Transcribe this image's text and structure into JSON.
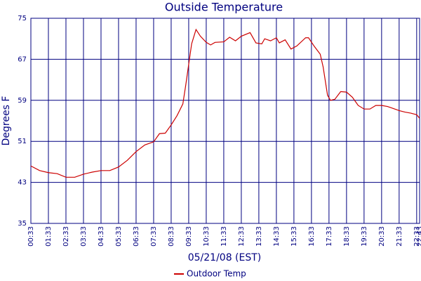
{
  "chart_data": {
    "type": "line",
    "title": "Outside Temperature",
    "y_label": "Degrees F",
    "x_label": "05/21/08 (EST)",
    "xlim": [
      33,
      1363
    ],
    "xticks": [
      {
        "value": 33,
        "label": "00:33"
      },
      {
        "value": 93,
        "label": "01:33"
      },
      {
        "value": 153,
        "label": "02:33"
      },
      {
        "value": 213,
        "label": "03:33"
      },
      {
        "value": 273,
        "label": "04:33"
      },
      {
        "value": 333,
        "label": "05:33"
      },
      {
        "value": 393,
        "label": "06:33"
      },
      {
        "value": 453,
        "label": "07:33"
      },
      {
        "value": 513,
        "label": "08:33"
      },
      {
        "value": 573,
        "label": "09:33"
      },
      {
        "value": 633,
        "label": "10:33"
      },
      {
        "value": 693,
        "label": "11:33"
      },
      {
        "value": 753,
        "label": "12:33"
      },
      {
        "value": 813,
        "label": "13:33"
      },
      {
        "value": 873,
        "label": "14:33"
      },
      {
        "value": 933,
        "label": "15:33"
      },
      {
        "value": 993,
        "label": "16:33"
      },
      {
        "value": 1053,
        "label": "17:33"
      },
      {
        "value": 1113,
        "label": "18:33"
      },
      {
        "value": 1173,
        "label": "19:33"
      },
      {
        "value": 1233,
        "label": "20:33"
      },
      {
        "value": 1293,
        "label": "21:33"
      },
      {
        "value": 1353,
        "label": "22:33"
      },
      {
        "value": 1363,
        "label": "22:43"
      }
    ],
    "ylim": [
      35,
      75
    ],
    "yticks": [
      35,
      43,
      51,
      59,
      67,
      75
    ],
    "grid": true,
    "legend": "bottom",
    "x": [
      33,
      63,
      93,
      123,
      153,
      183,
      213,
      243,
      273,
      303,
      333,
      363,
      393,
      423,
      453,
      473,
      493,
      513,
      533,
      553,
      563,
      573,
      583,
      598,
      613,
      633,
      648,
      663,
      693,
      713,
      733,
      753,
      783,
      803,
      823,
      833,
      853,
      873,
      883,
      903,
      923,
      943,
      973,
      983,
      1003,
      1023,
      1033,
      1048,
      1058,
      1073,
      1093,
      1113,
      1133,
      1153,
      1173,
      1193,
      1213,
      1233,
      1253,
      1273,
      1293,
      1313,
      1333,
      1353,
      1363
    ],
    "series": [
      {
        "name": "Outdoor Temp",
        "color": "#cc0000",
        "values": [
          46.2,
          45.3,
          44.9,
          44.7,
          44.0,
          44.0,
          44.6,
          45.0,
          45.3,
          45.3,
          46.0,
          47.3,
          49.0,
          50.3,
          50.9,
          52.5,
          52.6,
          54.2,
          56.0,
          58.3,
          62.0,
          66.0,
          70.0,
          72.8,
          71.5,
          70.3,
          69.8,
          70.3,
          70.4,
          71.3,
          70.6,
          71.5,
          72.2,
          70.2,
          70.0,
          71.0,
          70.6,
          71.2,
          70.2,
          70.8,
          69.0,
          69.6,
          71.2,
          71.2,
          69.5,
          68.0,
          65.5,
          60.0,
          59.0,
          59.2,
          60.7,
          60.6,
          59.6,
          58.0,
          57.3,
          57.3,
          58.0,
          58.0,
          57.8,
          57.4,
          57.0,
          56.7,
          56.5,
          56.2,
          55.5
        ]
      }
    ]
  }
}
